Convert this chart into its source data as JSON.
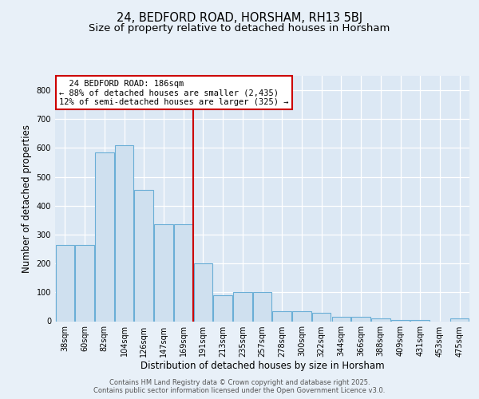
{
  "title1": "24, BEDFORD ROAD, HORSHAM, RH13 5BJ",
  "title2": "Size of property relative to detached houses in Horsham",
  "xlabel": "Distribution of detached houses by size in Horsham",
  "ylabel": "Number of detached properties",
  "categories": [
    "38sqm",
    "60sqm",
    "82sqm",
    "104sqm",
    "126sqm",
    "147sqm",
    "169sqm",
    "191sqm",
    "213sqm",
    "235sqm",
    "257sqm",
    "278sqm",
    "300sqm",
    "322sqm",
    "344sqm",
    "366sqm",
    "388sqm",
    "409sqm",
    "431sqm",
    "453sqm",
    "475sqm"
  ],
  "values": [
    265,
    265,
    585,
    610,
    455,
    335,
    335,
    200,
    90,
    100,
    100,
    35,
    35,
    30,
    15,
    15,
    10,
    5,
    5,
    0,
    10
  ],
  "bar_color": "#cfe0ef",
  "bar_edge_color": "#6aaed6",
  "vline_color": "#cc0000",
  "vline_index": 7,
  "annotation_text": "  24 BEDFORD ROAD: 186sqm\n← 88% of detached houses are smaller (2,435)\n12% of semi-detached houses are larger (325) →",
  "annotation_box_facecolor": "#ffffff",
  "annotation_box_edgecolor": "#cc0000",
  "ylim": [
    0,
    850
  ],
  "yticks": [
    0,
    100,
    200,
    300,
    400,
    500,
    600,
    700,
    800
  ],
  "plot_bg_color": "#dce8f4",
  "fig_bg_color": "#e8f0f8",
  "footer_text": "Contains HM Land Registry data © Crown copyright and database right 2025.\nContains public sector information licensed under the Open Government Licence v3.0.",
  "title_fontsize": 10.5,
  "subtitle_fontsize": 9.5,
  "tick_fontsize": 7,
  "ylabel_fontsize": 8.5,
  "xlabel_fontsize": 8.5,
  "ann_fontsize": 7.5
}
